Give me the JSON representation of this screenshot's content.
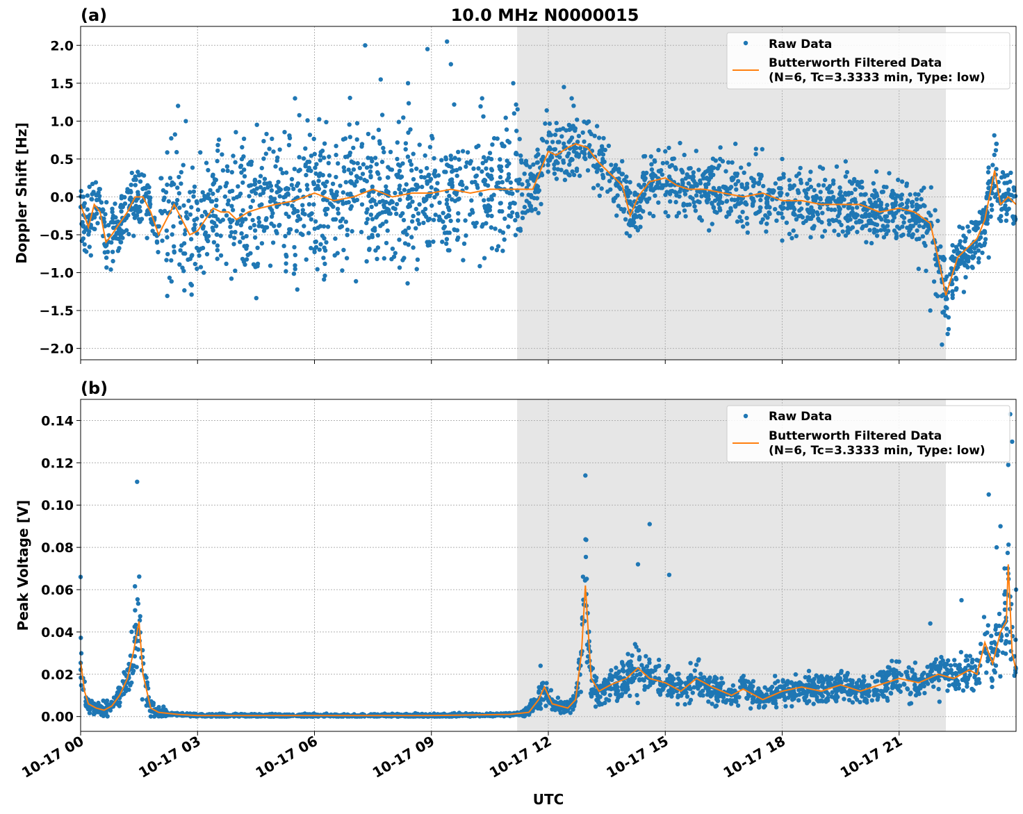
{
  "title": "10.0 MHz N0000015",
  "xlabel": "UTC",
  "x_ticks": [
    "10-17 00",
    "10-17 03",
    "10-17 06",
    "10-17 09",
    "10-17 12",
    "10-17 15",
    "10-17 18",
    "10-17 21"
  ],
  "colors": {
    "raw": "#1f77b4",
    "filtered": "#ff7f0e",
    "shade": "#e6e6e6"
  },
  "chart_data": [
    {
      "panel": "(a)",
      "type": "scatter",
      "ylabel": "Doppler Shift [Hz]",
      "xlim": [
        0,
        24
      ],
      "ylim": [
        -2.15,
        2.25
      ],
      "y_ticks": [
        2.0,
        1.5,
        1.0,
        0.5,
        0.0,
        -0.5,
        -1.0,
        -1.5,
        -2.0
      ],
      "y_tick_labels": [
        "2.0",
        "1.5",
        "1.0",
        "0.5",
        "0.0",
        "−0.5",
        "−1.0",
        "−1.5",
        "−2.0"
      ],
      "grid": true,
      "legend_position": "top-right",
      "legend": {
        "raw": "Raw Data",
        "filtered_line1": "Butterworth Filtered Data",
        "filtered_line2": "(N=6, Tc=3.3333 min, Type: low)"
      },
      "shaded_interval_hours": [
        11.2,
        22.2
      ],
      "series": [
        {
          "name": "Butterworth Filtered Data",
          "x_hours": [
            0,
            0.2,
            0.35,
            0.5,
            0.65,
            0.8,
            1.0,
            1.2,
            1.4,
            1.6,
            1.8,
            2.0,
            2.2,
            2.4,
            2.6,
            2.8,
            3.0,
            3.2,
            3.4,
            3.6,
            3.8,
            4.0,
            4.3,
            4.6,
            5.0,
            5.5,
            6.0,
            6.5,
            7.0,
            7.5,
            8.0,
            8.5,
            9.0,
            9.5,
            10.0,
            10.5,
            11.0,
            11.3,
            11.6,
            11.8,
            12.0,
            12.2,
            12.5,
            12.7,
            13.0,
            13.3,
            13.6,
            13.9,
            14.1,
            14.3,
            14.6,
            15.0,
            15.3,
            15.6,
            16.0,
            16.5,
            17.0,
            17.5,
            18.0,
            18.5,
            19.0,
            19.5,
            20.0,
            20.5,
            21.0,
            21.4,
            21.8,
            22.0,
            22.2,
            22.5,
            22.8,
            23.0,
            23.2,
            23.45,
            23.6,
            23.8,
            24.0
          ],
          "y": [
            -0.1,
            -0.4,
            -0.1,
            -0.2,
            -0.6,
            -0.5,
            -0.35,
            -0.2,
            0.0,
            0.0,
            -0.2,
            -0.5,
            -0.3,
            -0.1,
            -0.3,
            -0.5,
            -0.45,
            -0.3,
            -0.15,
            -0.2,
            -0.2,
            -0.3,
            -0.2,
            -0.15,
            -0.1,
            -0.05,
            0.05,
            -0.05,
            0.0,
            0.1,
            0.0,
            0.05,
            0.05,
            0.1,
            0.05,
            0.1,
            0.1,
            0.1,
            0.1,
            0.35,
            0.6,
            0.55,
            0.65,
            0.7,
            0.65,
            0.45,
            0.3,
            0.15,
            -0.25,
            0.0,
            0.2,
            0.25,
            0.15,
            0.1,
            0.1,
            0.05,
            0.0,
            0.05,
            -0.05,
            -0.05,
            -0.1,
            -0.1,
            -0.1,
            -0.2,
            -0.15,
            -0.2,
            -0.35,
            -0.8,
            -1.3,
            -0.8,
            -0.65,
            -0.55,
            -0.3,
            0.35,
            -0.1,
            0.0,
            -0.1
          ]
        },
        {
          "name": "Raw Data",
          "note_type": "dense scatter around filtered line",
          "x_hours": [
            2.5,
            2.7,
            5.5,
            7.3,
            7.7,
            8.4,
            8.9,
            9.4,
            9.5,
            10.3,
            11.1,
            12.4,
            12.6,
            15.0,
            16.8,
            18.0,
            19.4,
            21.5,
            21.8,
            22.1,
            23.3,
            23.5
          ],
          "y": [
            1.2,
            1.0,
            1.3,
            2.0,
            1.55,
            1.5,
            1.95,
            2.05,
            1.75,
            1.3,
            1.5,
            1.45,
            1.3,
            0.6,
            0.7,
            0.5,
            0.4,
            -0.95,
            -1.5,
            -1.95,
            -0.8,
            0.7
          ]
        }
      ]
    },
    {
      "panel": "(b)",
      "type": "scatter",
      "ylabel": "Peak Voltage [V]",
      "xlim": [
        0,
        24
      ],
      "ylim": [
        -0.007,
        0.15
      ],
      "y_ticks": [
        0.14,
        0.12,
        0.1,
        0.08,
        0.06,
        0.04,
        0.02,
        0.0
      ],
      "y_tick_labels": [
        "0.14",
        "0.12",
        "0.10",
        "0.08",
        "0.06",
        "0.04",
        "0.02",
        "0.00"
      ],
      "grid": true,
      "legend_position": "top-right",
      "legend": {
        "raw": "Raw Data",
        "filtered_line1": "Butterworth Filtered Data",
        "filtered_line2": "(N=6, Tc=3.3333 min, Type: low)"
      },
      "shaded_interval_hours": [
        11.2,
        22.2
      ],
      "series": [
        {
          "name": "Butterworth Filtered Data",
          "x_hours": [
            0,
            0.1,
            0.2,
            0.4,
            0.6,
            0.8,
            1.0,
            1.2,
            1.35,
            1.5,
            1.6,
            1.8,
            2.0,
            2.5,
            3.0,
            5.0,
            7.0,
            9.0,
            11.0,
            11.5,
            11.75,
            11.9,
            12.1,
            12.5,
            12.7,
            12.85,
            12.95,
            13.1,
            13.3,
            13.6,
            14.0,
            14.3,
            14.6,
            15.0,
            15.4,
            15.8,
            16.2,
            16.7,
            17.0,
            17.5,
            18.0,
            18.5,
            19.0,
            19.5,
            20.0,
            20.5,
            21.0,
            21.5,
            22.0,
            22.4,
            22.8,
            23.0,
            23.2,
            23.4,
            23.6,
            23.75,
            23.8,
            23.9,
            24.0
          ],
          "y": [
            0.026,
            0.012,
            0.006,
            0.004,
            0.003,
            0.005,
            0.01,
            0.018,
            0.03,
            0.045,
            0.02,
            0.004,
            0.002,
            0.001,
            0.0005,
            0.0005,
            0.0005,
            0.0005,
            0.001,
            0.002,
            0.008,
            0.014,
            0.006,
            0.004,
            0.008,
            0.03,
            0.062,
            0.018,
            0.012,
            0.015,
            0.018,
            0.023,
            0.018,
            0.016,
            0.012,
            0.018,
            0.014,
            0.01,
            0.013,
            0.008,
            0.012,
            0.014,
            0.012,
            0.015,
            0.012,
            0.015,
            0.018,
            0.016,
            0.02,
            0.018,
            0.022,
            0.02,
            0.035,
            0.025,
            0.04,
            0.045,
            0.072,
            0.03,
            0.022
          ]
        },
        {
          "name": "Raw Data",
          "note_type": "dense scatter around filtered line",
          "x_hours": [
            0,
            1.45,
            11.8,
            12.95,
            14.3,
            14.6,
            15.1,
            21.8,
            22.6,
            23.3,
            23.5,
            23.6,
            23.8,
            23.85,
            23.9,
            24.0
          ],
          "y": [
            0.066,
            0.111,
            0.024,
            0.114,
            0.072,
            0.091,
            0.067,
            0.044,
            0.055,
            0.105,
            0.08,
            0.09,
            0.119,
            0.143,
            0.13,
            0.06
          ]
        }
      ]
    }
  ]
}
